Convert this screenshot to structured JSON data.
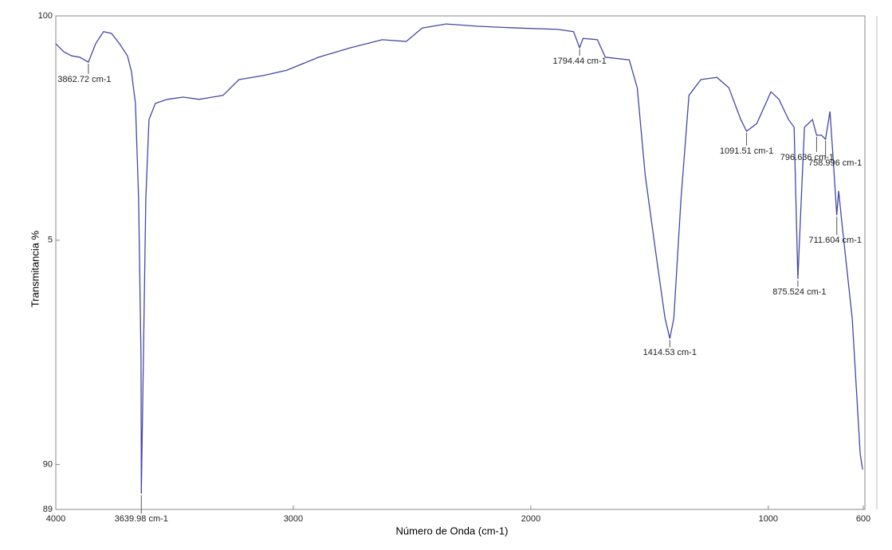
{
  "chart_data": {
    "type": "line",
    "xlabel": "Número de Onda (cm-1)",
    "ylabel": "Transmitancia %",
    "xlim": [
      4000,
      600
    ],
    "ylim": [
      89,
      100
    ],
    "xticks": [
      4000,
      3000,
      2000,
      1000,
      600
    ],
    "yticks": [
      100,
      {
        "value": 95,
        "label": "5"
      },
      90,
      89
    ],
    "series": [
      {
        "color": "#4646a6",
        "x": [
          4000,
          3966.5,
          3932.9,
          3899.4,
          3862.72,
          3832.3,
          3798.8,
          3765.3,
          3731.7,
          3698.2,
          3681.4,
          3664.7,
          3651.2,
          3641.2,
          3639.98,
          3631.1,
          3621.1,
          3607.6,
          3580.8,
          3530.5,
          3463.4,
          3396.4,
          3295.8,
          3228.7,
          3128.1,
          3027.5,
          2893.4,
          2759.2,
          2625.1,
          2524.5,
          2457.4,
          2356.8,
          2222.7,
          2054.9,
          1887.3,
          1820.2,
          1794.44,
          1780.0,
          1719.7,
          1686.1,
          1585.5,
          1551.9,
          1518.4,
          1468.1,
          1434.6,
          1414.53,
          1397.7,
          1367.5,
          1334.0,
          1283.7,
          1216.6,
          1166.3,
          1116.0,
          1091.51,
          1048.9,
          988.6,
          955.1,
          914.8,
          891.3,
          875.524,
          861.1,
          847.7,
          814.2,
          796.636,
          775.9,
          758.996,
          740.4,
          727.0,
          711.604,
          703.6,
          690.2,
          646.6,
          613.1,
          603
        ],
        "values": [
          99.38,
          99.2,
          99.11,
          99.08,
          98.97,
          99.38,
          99.65,
          99.61,
          99.38,
          99.11,
          98.76,
          98.05,
          95.92,
          92.37,
          89.35,
          92.37,
          95.92,
          97.69,
          98.05,
          98.14,
          98.19,
          98.14,
          98.23,
          98.58,
          98.67,
          98.79,
          99.08,
          99.29,
          99.47,
          99.43,
          99.73,
          99.82,
          99.77,
          99.73,
          99.7,
          99.65,
          99.29,
          99.5,
          99.47,
          99.08,
          99.02,
          98.4,
          96.45,
          94.5,
          93.26,
          92.81,
          93.26,
          95.92,
          98.23,
          98.58,
          98.63,
          98.4,
          97.69,
          97.43,
          97.6,
          98.31,
          98.14,
          97.69,
          97.52,
          94.14,
          95.92,
          97.52,
          97.69,
          97.34,
          97.34,
          97.25,
          97.87,
          96.81,
          95.56,
          96.1,
          95.39,
          93.26,
          90.24,
          89.89
        ]
      }
    ],
    "annotations": [
      {
        "label": "3862.72 cm-1",
        "x": 3862.72,
        "y": 98.97
      },
      {
        "label": "3639.98 cm-1",
        "x": 3639.98,
        "y": 89.35
      },
      {
        "label": "1794.44 cm-1",
        "x": 1794.44,
        "y": 99.29
      },
      {
        "label": "1414.53 cm-1",
        "x": 1414.53,
        "y": 92.81
      },
      {
        "label": "1091.51 cm-1",
        "x": 1091.51,
        "y": 97.43
      },
      {
        "label": "875.524 cm-1",
        "x": 875.524,
        "y": 94.14
      },
      {
        "label": "796.636 cm-1",
        "x": 796.636,
        "y": 97.34
      },
      {
        "label": "758.996 cm-1",
        "x": 758.996,
        "y": 97.25
      },
      {
        "label": "711.604 cm-1",
        "x": 711.604,
        "y": 95.56
      }
    ]
  }
}
